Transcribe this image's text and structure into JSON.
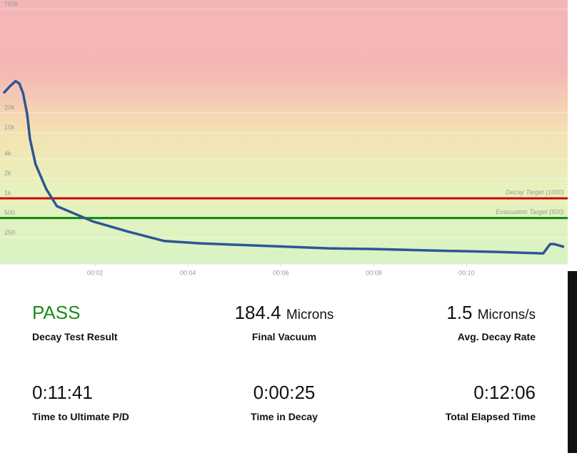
{
  "chart_data": {
    "type": "line",
    "log_y": true,
    "grid": true,
    "xlim": [
      0,
      12.1
    ],
    "ylim": [
      100,
      1050000
    ],
    "xticks": [
      {
        "value": 2,
        "label": "00:02"
      },
      {
        "value": 4,
        "label": "00:04"
      },
      {
        "value": 6,
        "label": "00:06"
      },
      {
        "value": 8,
        "label": "00:08"
      },
      {
        "value": 10,
        "label": "00:10"
      }
    ],
    "yticks": [
      {
        "value": 760000,
        "label": "760k"
      },
      {
        "value": 20000,
        "label": "20k"
      },
      {
        "value": 10000,
        "label": "10k"
      },
      {
        "value": 4000,
        "label": "4k"
      },
      {
        "value": 2000,
        "label": "2k"
      },
      {
        "value": 1000,
        "label": "1k"
      },
      500,
      250
    ],
    "x": [
      0.03,
      0.18,
      0.29,
      0.37,
      0.45,
      0.54,
      0.6,
      0.72,
      0.95,
      1.18,
      1.95,
      2.72,
      3.49,
      4.26,
      5.8,
      7.03,
      7.95,
      9.18,
      10.72,
      11.65,
      11.8,
      11.88,
      12.1
    ],
    "series": [
      {
        "color": "#2f5596",
        "values": [
          40000,
          52000,
          61000,
          56000,
          40000,
          19000,
          8000,
          3300,
          1380,
          760,
          445,
          310,
          224,
          206,
          187,
          173,
          169,
          161,
          152,
          145,
          201,
          201,
          182
        ]
      }
    ],
    "reference_lines": [
      {
        "label": "Decay Target (1000)",
        "value": 1000,
        "color": "#d40000"
      },
      {
        "label": "Evacuation Target (500)",
        "value": 500,
        "color": "#0a8a0a"
      }
    ]
  },
  "stats": [
    {
      "value": "PASS",
      "label": "Decay Test Result",
      "color": "#1a8c1a"
    },
    {
      "value": "184.4",
      "unit": "Microns",
      "label": "Final Vacuum"
    },
    {
      "value": "1.5",
      "unit": "Microns/s",
      "label": "Avg. Decay Rate"
    },
    {
      "value": "0:11:41",
      "label": "Time to Ultimate P/D"
    },
    {
      "value": "0:00:25",
      "label": "Time in Decay"
    },
    {
      "value": "0:12:06",
      "label": "Total Elapsed Time"
    }
  ]
}
